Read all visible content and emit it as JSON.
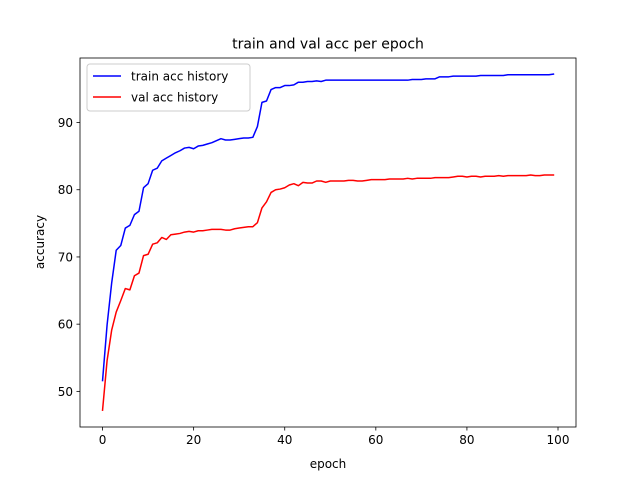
{
  "chart_data": {
    "type": "line",
    "title": "train and val acc per epoch",
    "xlabel": "epoch",
    "ylabel": "accuracy",
    "xlim": [
      -4.95,
      103.95
    ],
    "ylim": [
      44.7,
      99.6
    ],
    "xticks": [
      0,
      20,
      40,
      60,
      80,
      100
    ],
    "yticks": [
      50,
      60,
      70,
      80,
      90
    ],
    "grid": false,
    "legend_position": "top-left",
    "x": [
      0,
      1,
      2,
      3,
      4,
      5,
      6,
      7,
      8,
      9,
      10,
      11,
      12,
      13,
      14,
      15,
      16,
      17,
      18,
      19,
      20,
      21,
      22,
      23,
      24,
      25,
      26,
      27,
      28,
      29,
      30,
      31,
      32,
      33,
      34,
      35,
      36,
      37,
      38,
      39,
      40,
      41,
      42,
      43,
      44,
      45,
      46,
      47,
      48,
      49,
      50,
      51,
      52,
      53,
      54,
      55,
      56,
      57,
      58,
      59,
      60,
      61,
      62,
      63,
      64,
      65,
      66,
      67,
      68,
      69,
      70,
      71,
      72,
      73,
      74,
      75,
      76,
      77,
      78,
      79,
      80,
      81,
      82,
      83,
      84,
      85,
      86,
      87,
      88,
      89,
      90,
      91,
      92,
      93,
      94,
      95,
      96,
      97,
      98,
      99
    ],
    "series": [
      {
        "name": "train acc history",
        "color": "#0000ff",
        "values": [
          51.6,
          59.9,
          66.1,
          71.0,
          71.7,
          74.3,
          74.7,
          76.3,
          76.8,
          80.3,
          80.9,
          82.9,
          83.2,
          84.3,
          84.7,
          85.1,
          85.5,
          85.8,
          86.2,
          86.3,
          86.1,
          86.5,
          86.6,
          86.8,
          87.0,
          87.3,
          87.6,
          87.4,
          87.4,
          87.5,
          87.6,
          87.7,
          87.7,
          87.8,
          89.4,
          93.0,
          93.2,
          94.9,
          95.2,
          95.2,
          95.5,
          95.5,
          95.6,
          96.0,
          96.0,
          96.1,
          96.1,
          96.2,
          96.1,
          96.3,
          96.3,
          96.3,
          96.3,
          96.3,
          96.3,
          96.3,
          96.3,
          96.3,
          96.3,
          96.3,
          96.3,
          96.3,
          96.3,
          96.3,
          96.3,
          96.3,
          96.3,
          96.3,
          96.4,
          96.4,
          96.4,
          96.5,
          96.5,
          96.5,
          96.8,
          96.8,
          96.8,
          96.9,
          96.9,
          96.9,
          96.9,
          96.9,
          96.9,
          97.0,
          97.0,
          97.0,
          97.0,
          97.0,
          97.0,
          97.1,
          97.1,
          97.1,
          97.1,
          97.1,
          97.1,
          97.1,
          97.1,
          97.1,
          97.1,
          97.2
        ]
      },
      {
        "name": "val acc history",
        "color": "#ff0000",
        "values": [
          47.2,
          54.6,
          59.1,
          61.8,
          63.5,
          65.3,
          65.1,
          67.2,
          67.6,
          70.2,
          70.4,
          71.9,
          72.1,
          72.9,
          72.6,
          73.3,
          73.4,
          73.5,
          73.7,
          73.8,
          73.7,
          73.9,
          73.9,
          74.0,
          74.1,
          74.1,
          74.1,
          74.0,
          74.0,
          74.2,
          74.3,
          74.4,
          74.5,
          74.5,
          75.1,
          77.3,
          78.2,
          79.6,
          80.0,
          80.1,
          80.3,
          80.7,
          80.9,
          80.6,
          81.1,
          81.0,
          81.0,
          81.3,
          81.3,
          81.1,
          81.3,
          81.3,
          81.3,
          81.3,
          81.4,
          81.4,
          81.3,
          81.3,
          81.4,
          81.5,
          81.5,
          81.5,
          81.5,
          81.6,
          81.6,
          81.6,
          81.6,
          81.7,
          81.6,
          81.7,
          81.7,
          81.7,
          81.7,
          81.8,
          81.8,
          81.8,
          81.8,
          81.9,
          82.0,
          82.0,
          81.9,
          82.0,
          82.0,
          81.9,
          82.0,
          82.0,
          82.0,
          82.1,
          82.0,
          82.1,
          82.1,
          82.1,
          82.1,
          82.1,
          82.2,
          82.1,
          82.1,
          82.2,
          82.2,
          82.2
        ]
      }
    ]
  }
}
